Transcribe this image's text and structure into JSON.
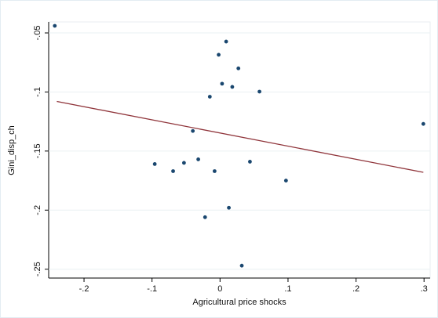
{
  "chart_data": {
    "type": "scatter",
    "x_label": "Agricultural price shocks",
    "y_label": "Gini_disp_ch",
    "xlim": [
      -0.252,
      0.309
    ],
    "ylim": [
      -0.2575,
      -0.0407
    ],
    "xticks": [
      {
        "value": -0.2,
        "label": "-.2"
      },
      {
        "value": -0.1,
        "label": "-.1"
      },
      {
        "value": 0,
        "label": "0"
      },
      {
        "value": 0.1,
        "label": ".1"
      },
      {
        "value": 0.2,
        "label": ".2"
      },
      {
        "value": 0.3,
        "label": ".3"
      }
    ],
    "yticks": [
      {
        "value": -0.05,
        "label": "-.05"
      },
      {
        "value": -0.1,
        "label": "-.1"
      },
      {
        "value": -0.15,
        "label": "-.15"
      },
      {
        "value": -0.2,
        "label": "-.2"
      },
      {
        "value": -0.25,
        "label": "-.25"
      }
    ],
    "grid": true,
    "series": [
      {
        "color": "#1a476f",
        "kind": "points",
        "x": [
          -0.243,
          0.009,
          -0.002,
          0.027,
          0.003,
          0.018,
          0.058,
          -0.015,
          -0.04,
          0.299,
          -0.096,
          -0.069,
          -0.053,
          -0.032,
          -0.008,
          0.044,
          0.097,
          0.013,
          -0.022,
          0.032
        ],
        "values": [
          -0.044,
          -0.0573,
          -0.0685,
          -0.08,
          -0.093,
          -0.0957,
          -0.0997,
          -0.104,
          -0.133,
          -0.127,
          -0.161,
          -0.167,
          -0.16,
          -0.157,
          -0.167,
          -0.159,
          -0.175,
          -0.198,
          -0.206,
          -0.247
        ]
      },
      {
        "color": "#90353b",
        "kind": "line",
        "x": [
          -0.24,
          0.299
        ],
        "values": [
          -0.108,
          -0.168
        ]
      }
    ]
  }
}
